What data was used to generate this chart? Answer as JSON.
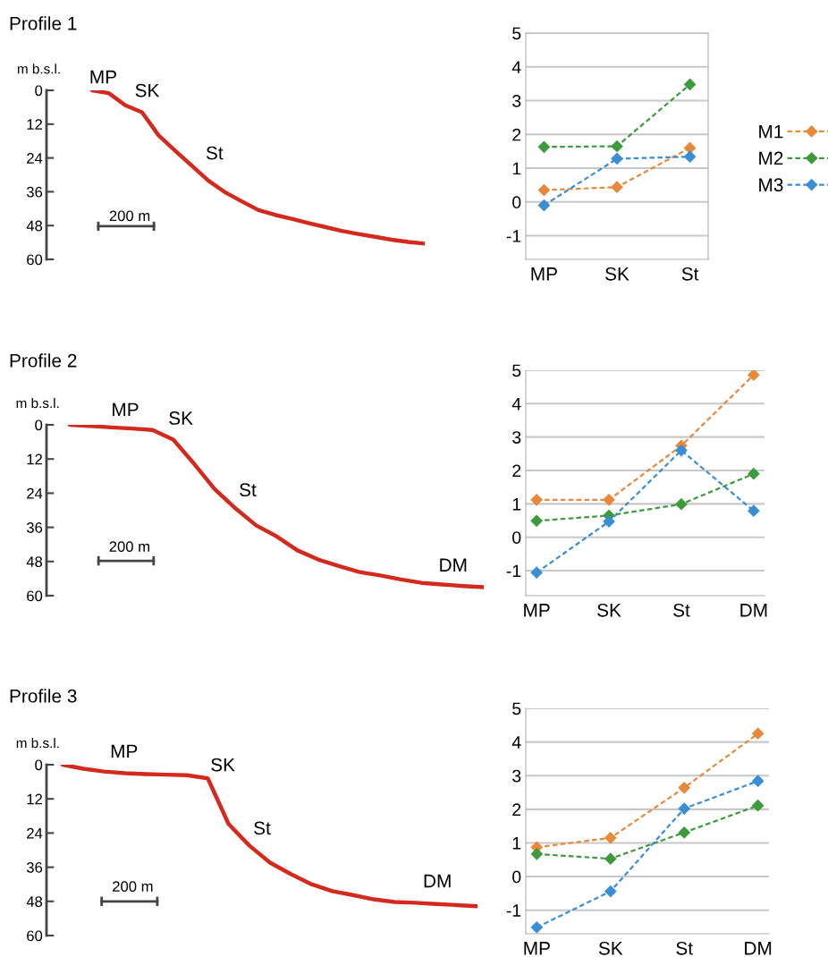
{
  "chart_data": [
    {
      "type": "line",
      "title": "Profile 1",
      "ylabel": "m b.s.l.",
      "categories": [
        null,
        null,
        null,
        null,
        null,
        null,
        null,
        null,
        null,
        null,
        null,
        null,
        null,
        null,
        null,
        null,
        null,
        null,
        null,
        null,
        null
      ],
      "series": [
        {
          "color": "#d42a1e",
          "values": [
            0,
            1.0,
            5.3,
            7.8,
            16.0,
            21.5,
            26.8,
            32.1,
            36.2,
            39.4,
            42.5,
            44.2,
            45.6,
            47.1,
            48.5,
            49.9,
            51.0,
            52.0,
            53.0,
            53.8,
            54.4
          ]
        }
      ],
      "ylim": [
        60,
        0
      ],
      "yticks": [
        0,
        12,
        24,
        36,
        48,
        60
      ],
      "tick_labels": "y",
      "line_style": "solid",
      "annotations": [
        "MP",
        "SK",
        "St",
        "200 m"
      ]
    },
    {
      "type": "line",
      "categories": [
        "MP",
        "SK",
        "St"
      ],
      "series": [
        {
          "name": "M1",
          "color": "#e8883a",
          "values": [
            0.35,
            0.44,
            1.6
          ]
        },
        {
          "name": "M2",
          "color": "#3d9a3d",
          "values": [
            1.63,
            1.65,
            3.48
          ]
        },
        {
          "name": "M3",
          "color": "#3a8fd4",
          "values": [
            -0.1,
            1.28,
            1.34
          ]
        }
      ],
      "ylim": [
        -1.7,
        5
      ],
      "yticks": [
        -1,
        0,
        1,
        2,
        3,
        4,
        5
      ],
      "grid": "y",
      "legend": "right",
      "marker": "diamond",
      "line_style": "dashed"
    },
    {
      "type": "line",
      "title": "Profile 2",
      "ylabel": "m b.s.l.",
      "categories": [
        null,
        null,
        null,
        null,
        null,
        null,
        null,
        null,
        null,
        null,
        null,
        null,
        null,
        null,
        null,
        null,
        null,
        null,
        null,
        null,
        null
      ],
      "series": [
        {
          "color": "#d42a1e",
          "values": [
            0,
            0.4,
            0.9,
            1.3,
            1.8,
            5.2,
            13.6,
            22.6,
            29.3,
            35.3,
            39.2,
            44.1,
            47.3,
            49.6,
            51.7,
            52.9,
            54.3,
            55.5,
            56.1,
            56.6,
            57.0
          ]
        }
      ],
      "ylim": [
        60,
        0
      ],
      "yticks": [
        0,
        12,
        24,
        36,
        48,
        60
      ],
      "tick_labels": "y",
      "line_style": "solid",
      "annotations": [
        "MP",
        "SK",
        "St",
        "DM",
        "200 m"
      ]
    },
    {
      "type": "line",
      "categories": [
        "MP",
        "SK",
        "St",
        "DM"
      ],
      "series": [
        {
          "color": "#e8883a",
          "values": [
            1.12,
            1.12,
            2.74,
            4.86
          ]
        },
        {
          "color": "#3d9a3d",
          "values": [
            0.49,
            0.65,
            0.99,
            1.9
          ]
        },
        {
          "color": "#3a8fd4",
          "values": [
            -1.06,
            0.47,
            2.6,
            0.79
          ]
        }
      ],
      "ylim": [
        -1.75,
        5
      ],
      "yticks": [
        -1,
        0,
        1,
        2,
        3,
        4,
        5
      ],
      "grid": "y",
      "marker": "diamond",
      "line_style": "dashed"
    },
    {
      "type": "line",
      "title": "Profile 3",
      "ylabel": "m b.s.l.",
      "categories": [
        null,
        null,
        null,
        null,
        null,
        null,
        null,
        null,
        null,
        null,
        null,
        null,
        null,
        null,
        null,
        null,
        null,
        null,
        null,
        null,
        null
      ],
      "series": [
        {
          "color": "#d42a1e",
          "values": [
            0,
            1.4,
            2.4,
            3.0,
            3.3,
            3.5,
            3.7,
            4.8,
            20.8,
            28.4,
            34.4,
            38.4,
            42.0,
            44.4,
            45.8,
            47.3,
            48.2,
            48.5,
            48.9,
            49.3,
            49.7
          ]
        }
      ],
      "ylim": [
        60,
        0
      ],
      "yticks": [
        0,
        12,
        24,
        36,
        48,
        60
      ],
      "tick_labels": "y",
      "line_style": "solid",
      "annotations": [
        "MP",
        "SK",
        "St",
        "DM",
        "200 m"
      ]
    },
    {
      "type": "line",
      "categories": [
        "MP",
        "SK",
        "St",
        "DM"
      ],
      "series": [
        {
          "color": "#e8883a",
          "values": [
            0.87,
            1.15,
            2.64,
            4.25
          ]
        },
        {
          "color": "#3d9a3d",
          "values": [
            0.67,
            0.53,
            1.31,
            2.11
          ]
        },
        {
          "color": "#3a8fd4",
          "values": [
            -1.51,
            -0.44,
            2.02,
            2.84
          ]
        }
      ],
      "ylim": [
        -1.7,
        5
      ],
      "yticks": [
        -1,
        0,
        1,
        2,
        3,
        4,
        5
      ],
      "grid": "y",
      "marker": "diamond",
      "line_style": "dashed"
    }
  ]
}
